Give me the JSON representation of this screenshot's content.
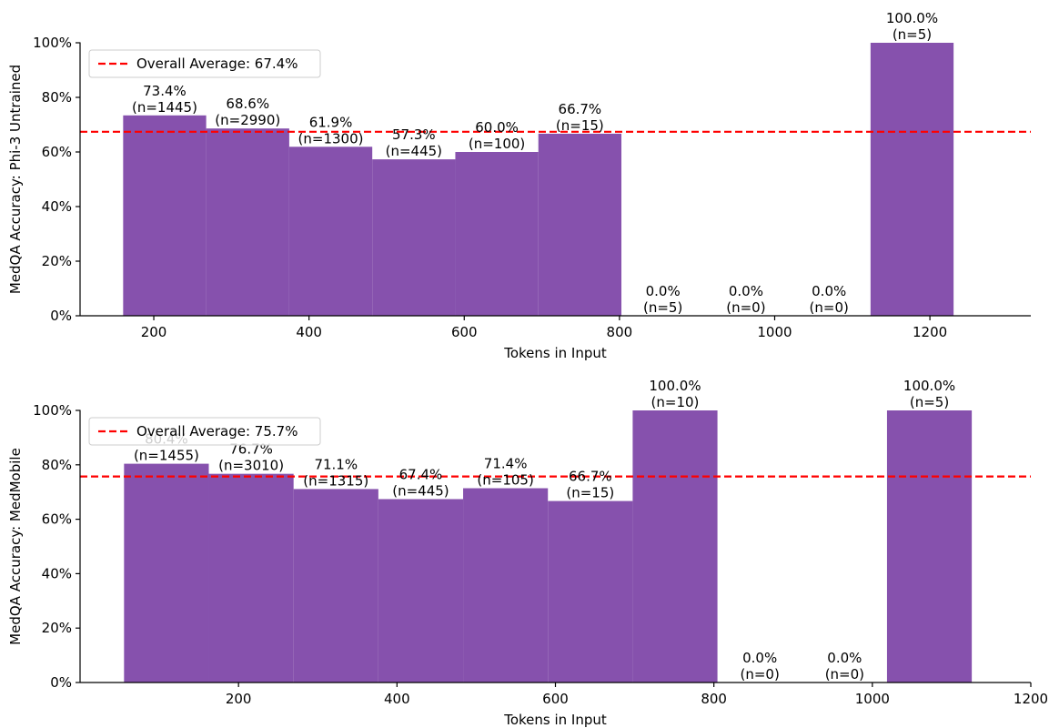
{
  "colors": {
    "bar": "#8651AD",
    "average_line": "#FF0000"
  },
  "chart_data": [
    {
      "type": "bar",
      "ylabel": "MedQA Accuracy: Phi-3 Untrained",
      "xlabel": "Tokens in Input",
      "xlim": [
        105,
        1330
      ],
      "ylim": [
        0,
        100
      ],
      "xticks": [
        200,
        400,
        600,
        800,
        1000,
        1200
      ],
      "yticks": [
        0,
        20,
        40,
        60,
        80,
        100
      ],
      "ytick_labels": [
        "0%",
        "20%",
        "40%",
        "60%",
        "80%",
        "100%"
      ],
      "bin_width": 107,
      "bars": [
        {
          "x": 214,
          "value": 73.4,
          "label": "73.4%",
          "n_label": "(n=1445)"
        },
        {
          "x": 321,
          "value": 68.6,
          "label": "68.6%",
          "n_label": "(n=2990)"
        },
        {
          "x": 428,
          "value": 61.9,
          "label": "61.9%",
          "n_label": "(n=1300)"
        },
        {
          "x": 535,
          "value": 57.3,
          "label": "57.3%",
          "n_label": "(n=445)"
        },
        {
          "x": 642,
          "value": 60.0,
          "label": "60.0%",
          "n_label": "(n=100)"
        },
        {
          "x": 749,
          "value": 66.7,
          "label": "66.7%",
          "n_label": "(n=15)"
        },
        {
          "x": 856,
          "value": 0.0,
          "label": "0.0%",
          "n_label": "(n=5)"
        },
        {
          "x": 963,
          "value": 0.0,
          "label": "0.0%",
          "n_label": "(n=0)"
        },
        {
          "x": 1070,
          "value": 0.0,
          "label": "0.0%",
          "n_label": "(n=0)"
        },
        {
          "x": 1177,
          "value": 100.0,
          "label": "100.0%",
          "n_label": "(n=5)"
        }
      ],
      "average": 67.4,
      "legend": "Overall Average: 67.4%",
      "legend_position": "top-left"
    },
    {
      "type": "bar",
      "ylabel": "MedQA Accuracy: MedMobile",
      "xlabel": "Tokens in Input",
      "xlim": [
        0,
        1200
      ],
      "ylim": [
        0,
        100
      ],
      "xticks": [
        200,
        400,
        600,
        800,
        1000,
        1200
      ],
      "yticks": [
        0,
        20,
        40,
        60,
        80,
        100
      ],
      "ytick_labels": [
        "0%",
        "20%",
        "40%",
        "60%",
        "80%",
        "100%"
      ],
      "bin_width": 107,
      "bars": [
        {
          "x": 109,
          "value": 80.4,
          "label": "80.4%",
          "n_label": "(n=1455)"
        },
        {
          "x": 216,
          "value": 76.7,
          "label": "76.7%",
          "n_label": "(n=3010)"
        },
        {
          "x": 323,
          "value": 71.1,
          "label": "71.1%",
          "n_label": "(n=1315)"
        },
        {
          "x": 430,
          "value": 67.4,
          "label": "67.4%",
          "n_label": "(n=445)"
        },
        {
          "x": 537,
          "value": 71.4,
          "label": "71.4%",
          "n_label": "(n=105)"
        },
        {
          "x": 644,
          "value": 66.7,
          "label": "66.7%",
          "n_label": "(n=15)"
        },
        {
          "x": 751,
          "value": 100.0,
          "label": "100.0%",
          "n_label": "(n=10)"
        },
        {
          "x": 858,
          "value": 0.0,
          "label": "0.0%",
          "n_label": "(n=0)"
        },
        {
          "x": 965,
          "value": 0.0,
          "label": "0.0%",
          "n_label": "(n=0)"
        },
        {
          "x": 1072,
          "value": 100.0,
          "label": "100.0%",
          "n_label": "(n=5)"
        }
      ],
      "average": 75.7,
      "legend": "Overall Average: 75.7%",
      "legend_position": "top-left"
    }
  ]
}
